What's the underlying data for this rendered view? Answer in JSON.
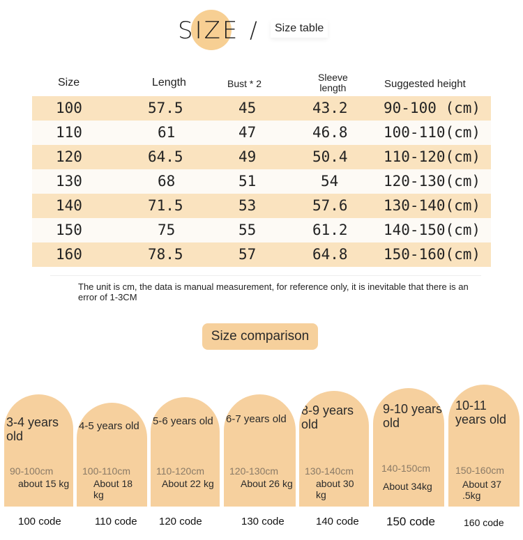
{
  "header": {
    "title": "SIZE",
    "slash": "/",
    "subtitle": "Size table"
  },
  "table": {
    "headers": {
      "size": "Size",
      "length": "Length",
      "bust": "Bust * 2",
      "sleeve_1": "Sleeve",
      "sleeve_2": "length",
      "height": "Suggested height"
    },
    "rows": [
      {
        "size": "100",
        "length": "57.5",
        "bust": "45",
        "sleeve": "43.2",
        "height": "90-100 (cm)"
      },
      {
        "size": "110",
        "length": "61",
        "bust": "47",
        "sleeve": "46.8",
        "height": "100-110(cm)"
      },
      {
        "size": "120",
        "length": "64.5",
        "bust": "49",
        "sleeve": "50.4",
        "height": "110-120(cm)"
      },
      {
        "size": "130",
        "length": "68",
        "bust": "51",
        "sleeve": "54",
        "height": "120-130(cm)"
      },
      {
        "size": "140",
        "length": "71.5",
        "bust": "53",
        "sleeve": "57.6",
        "height": "130-140(cm)"
      },
      {
        "size": "150",
        "length": "75",
        "bust": "55",
        "sleeve": "61.2",
        "height": "140-150(cm)"
      },
      {
        "size": "160",
        "length": "78.5",
        "bust": "57",
        "sleeve": "64.8",
        "height": "150-160(cm)"
      }
    ]
  },
  "note": "The unit is cm, the data is manual measurement, for reference only, it is inevitable that there is an error of 1-3CM",
  "comparison": {
    "label": "Size comparison",
    "cards": [
      {
        "age": "3-4 years old",
        "height": "90-100cm",
        "weight": "about 15 kg",
        "code": "100 code"
      },
      {
        "age": "4-5 years old",
        "height": "100-110cm",
        "weight": "About 18 kg",
        "code": "110 code"
      },
      {
        "age": "5-6 years old",
        "height": "110-120cm",
        "weight": "About 22 kg",
        "code": "120 code"
      },
      {
        "age": "6-7 years old",
        "height": "120-130cm",
        "weight": "About 26 kg",
        "code": "130 code"
      },
      {
        "age": "8-9 years old",
        "height": "130-140cm",
        "weight": "about 30 kg",
        "code": "140 code"
      },
      {
        "age": "9-10 years old",
        "height": "140-150cm",
        "weight": "About 34kg",
        "code": "150 code"
      },
      {
        "age": "10-11 years old",
        "height": "150-160cm",
        "weight": "About 37 .5kg",
        "code": "160 code"
      }
    ]
  },
  "colors": {
    "accent": "#f6d09e",
    "row_alt": "#fae3bf",
    "row_plain": "#fdfaf5"
  }
}
